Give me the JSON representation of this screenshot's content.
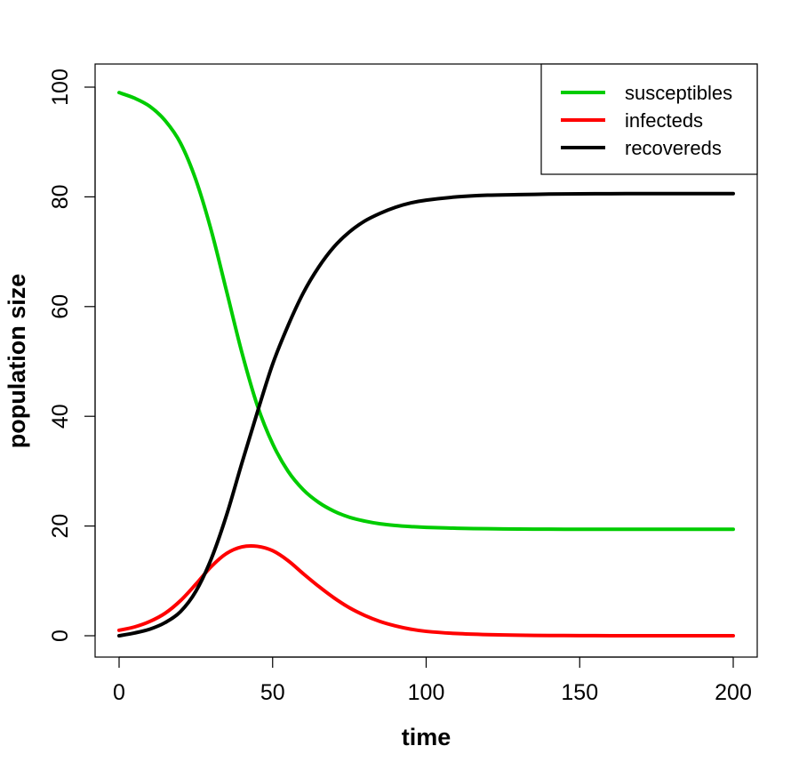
{
  "chart_data": {
    "type": "line",
    "title": "",
    "xlabel": "time",
    "ylabel": "population size",
    "xlim": [
      0,
      200
    ],
    "ylim": [
      0,
      100
    ],
    "x_ticks": [
      0,
      50,
      100,
      150,
      200
    ],
    "y_ticks": [
      0,
      20,
      40,
      60,
      80,
      100
    ],
    "grid": false,
    "legend_position": "top-right",
    "x": [
      0,
      5,
      10,
      15,
      20,
      25,
      30,
      35,
      40,
      45,
      50,
      55,
      60,
      65,
      70,
      75,
      80,
      85,
      90,
      95,
      100,
      110,
      120,
      130,
      140,
      150,
      160,
      170,
      180,
      190,
      200
    ],
    "series": [
      {
        "name": "susceptibles",
        "color": "#00cc00",
        "values": [
          99.0,
          98.0,
          96.5,
          93.9,
          89.8,
          83.1,
          73.9,
          62.8,
          51.6,
          42.0,
          35.0,
          30.0,
          26.6,
          24.3,
          22.7,
          21.6,
          20.9,
          20.4,
          20.1,
          19.9,
          19.75,
          19.6,
          19.5,
          19.45,
          19.42,
          19.4,
          19.4,
          19.4,
          19.4,
          19.4,
          19.4
        ]
      },
      {
        "name": "infecteds",
        "color": "#ff0000",
        "values": [
          1.0,
          1.6,
          2.6,
          4.1,
          6.4,
          9.4,
          12.6,
          15.0,
          16.2,
          16.3,
          15.5,
          13.7,
          11.3,
          9.0,
          6.9,
          5.1,
          3.7,
          2.6,
          1.8,
          1.2,
          0.8,
          0.4,
          0.2,
          0.1,
          0.05,
          0.02,
          0.01,
          0.0,
          0.0,
          0.0,
          0.0
        ]
      },
      {
        "name": "recovereds",
        "color": "#000000",
        "values": [
          0.0,
          0.5,
          1.2,
          2.4,
          4.4,
          8.1,
          14.0,
          22.0,
          31.5,
          40.7,
          49.5,
          56.5,
          62.5,
          67.2,
          70.9,
          73.6,
          75.6,
          77.0,
          78.1,
          78.9,
          79.4,
          80.0,
          80.3,
          80.4,
          80.5,
          80.55,
          80.58,
          80.6,
          80.6,
          80.6,
          80.6
        ]
      }
    ]
  }
}
